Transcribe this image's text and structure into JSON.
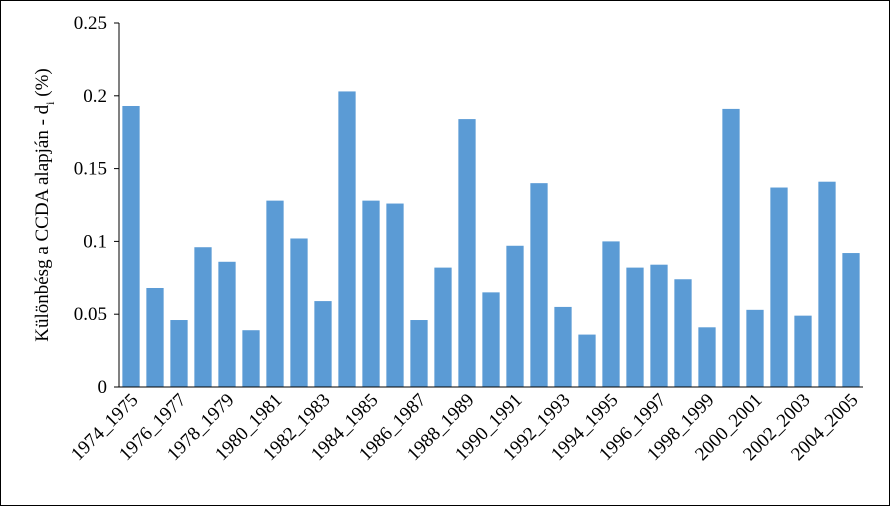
{
  "chart_data": {
    "type": "bar",
    "y_label": {
      "text": "Különbésg a CCDA  alapján - d",
      "subscript": "i",
      "suffix": " (%)"
    },
    "categories": [
      "1974_1975",
      null,
      "1976_1977",
      null,
      "1978_1979",
      null,
      "1980_1981",
      null,
      "1982_1983",
      null,
      "1984_1985",
      null,
      "1986_1987",
      null,
      "1988_1989",
      null,
      "1990_1991",
      null,
      "1992_1993",
      null,
      "1994_1995",
      null,
      "1996_1997",
      null,
      "1998_1999",
      null,
      "2000_2001",
      null,
      "2002_2003",
      null,
      "2004_2005"
    ],
    "values": [
      0.193,
      0.068,
      0.046,
      0.096,
      0.086,
      0.039,
      0.128,
      0.102,
      0.059,
      0.203,
      0.128,
      0.126,
      0.046,
      0.082,
      0.184,
      0.065,
      0.097,
      0.14,
      0.055,
      0.036,
      0.1,
      0.082,
      0.084,
      0.074,
      0.041,
      0.191,
      0.053,
      0.137,
      0.049,
      0.141,
      0.092
    ],
    "color": "#5b9bd5",
    "ylim": [
      0,
      0.25
    ],
    "yticks": [
      0,
      0.05,
      0.1,
      0.15,
      0.2,
      0.25
    ],
    "grid": false
  }
}
